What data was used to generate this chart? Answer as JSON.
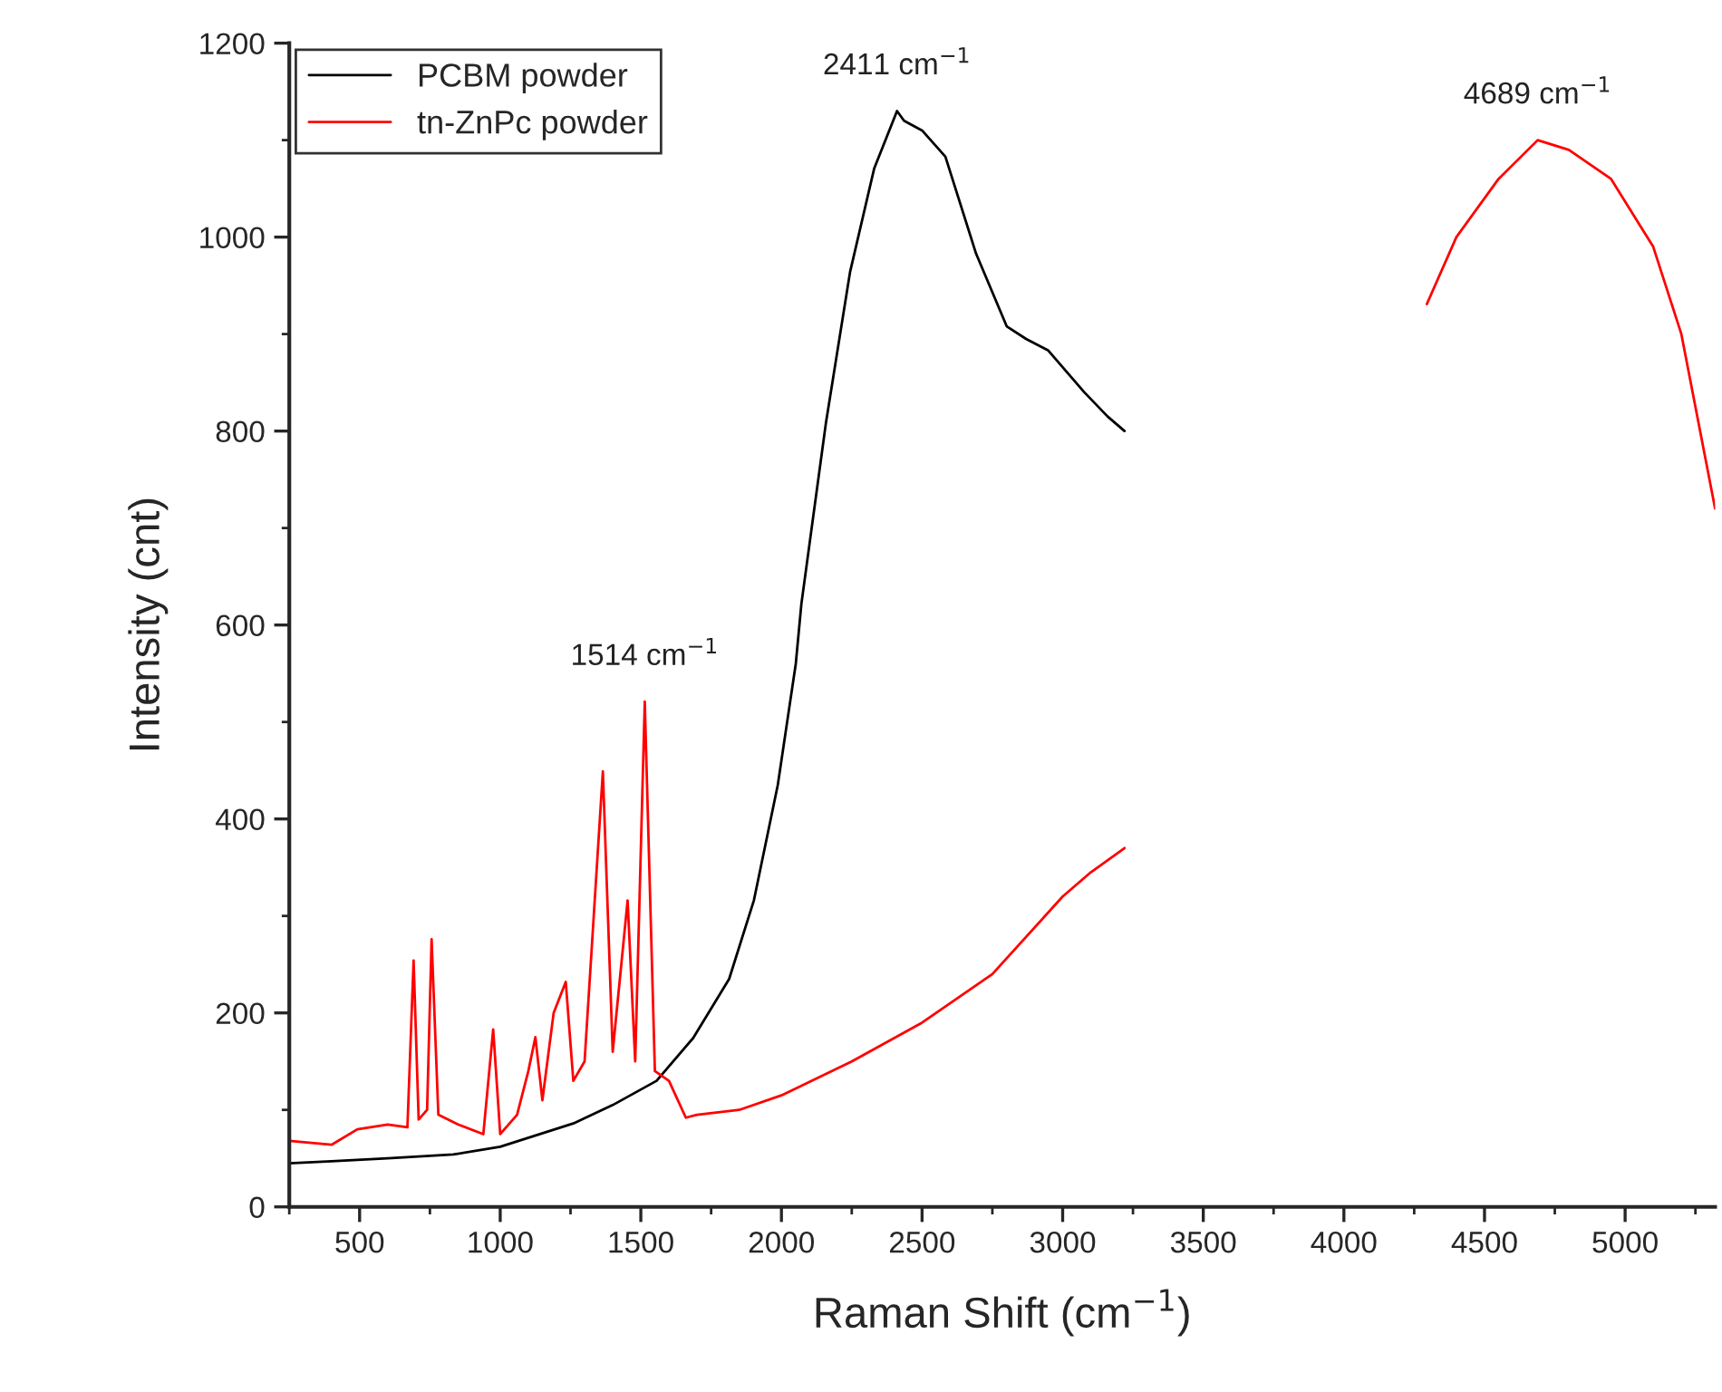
{
  "chart_data": {
    "type": "line",
    "xlabel": "Raman Shift (cm$^{−1}$)",
    "ylabel": "Intensity (cnt)",
    "xlim": [
      250,
      5320
    ],
    "xticks": [
      500,
      1000,
      1500,
      2000,
      2500,
      3000,
      3500,
      4000,
      4500,
      5000
    ],
    "ylim": [
      0,
      1200
    ],
    "yticks": [
      0,
      200,
      400,
      600,
      800,
      1000,
      1200
    ],
    "grid": false,
    "legend": "top left",
    "series": [
      {
        "name": "PCBM powder",
        "color": "#000000",
        "x": [
          250,
          400,
          600,
          833,
          1000,
          1260,
          1400,
          1556,
          1686,
          1814,
          1902,
          1987,
          2051,
          2071,
          2158,
          2244,
          2330,
          2411,
          2436,
          2500,
          2583,
          2692,
          2801,
          2870,
          2949,
          3077,
          3160,
          3220
        ],
        "values": [
          45,
          47,
          50,
          54,
          62,
          86,
          105,
          130,
          174,
          235,
          316,
          435,
          560,
          622,
          808,
          964,
          1071,
          1130,
          1120,
          1110,
          1083,
          983,
          908,
          895,
          883,
          840,
          815,
          800
        ]
      },
      {
        "name": "tn-ZnPc powder",
        "color": "#ff0000",
        "x": [
          250,
          400,
          492,
          600,
          670,
          692,
          710,
          740,
          756,
          780,
          850,
          940,
          975,
          1000,
          1060,
          1100,
          1125,
          1150,
          1190,
          1233,
          1260,
          1300,
          1365,
          1400,
          1453,
          1480,
          1514,
          1550,
          1600,
          1660,
          1700,
          1850,
          2000,
          2250,
          2500,
          2750,
          3000,
          3100,
          3220,
          3221,
          4295,
          4400,
          4550,
          4689,
          4800,
          4950,
          5100,
          5200,
          5320
        ],
        "values": [
          68,
          64,
          80,
          85,
          82,
          254,
          90,
          100,
          276,
          95,
          85,
          75,
          183,
          75,
          95,
          140,
          175,
          110,
          200,
          232,
          130,
          150,
          449,
          160,
          316,
          150,
          521,
          140,
          130,
          92,
          95,
          100,
          115,
          150,
          190,
          240,
          320,
          345,
          370,
          null,
          931,
          1000,
          1060,
          1100,
          1090,
          1060,
          990,
          900,
          720
        ]
      }
    ],
    "annotations": [
      {
        "text": "1514 cm$^{−1}$",
        "x": 1514,
        "y": 521
      },
      {
        "text": "2411 cm$^{−1}$",
        "x": 2411,
        "y": 1130
      },
      {
        "text": "4689 cm$^{−1}$",
        "x": 4689,
        "y": 1100
      }
    ]
  }
}
